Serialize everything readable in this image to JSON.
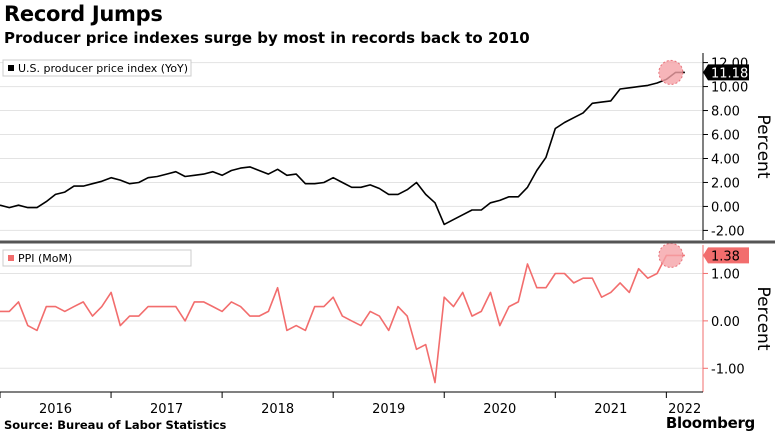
{
  "header": {
    "title": "Record Jumps",
    "subtitle": "Producer price indexes surge by most in records back to 2010"
  },
  "footer": {
    "source": "Source: Bureau of Labor Statistics",
    "brand": "Bloomberg"
  },
  "colors": {
    "yoy_line": "#000000",
    "mom_line": "#f26d6d",
    "highlight": "#f5a3a8",
    "divider": "#555555"
  },
  "chart_data": [
    {
      "type": "line",
      "legend": "U.S. producer price index (YoY)",
      "ylabel": "Percent",
      "ylim": [
        -2.8,
        12.8
      ],
      "yticks": [
        -2,
        0,
        2,
        4,
        6,
        8,
        10,
        12
      ],
      "ytick_labels": [
        "-2.00",
        "0.00",
        "2.00",
        "4.00",
        "6.00",
        "8.00",
        "10.00",
        "12.00"
      ],
      "callout": "11.18",
      "x": [
        "2016-01",
        "2016-02",
        "2016-03",
        "2016-04",
        "2016-05",
        "2016-06",
        "2016-07",
        "2016-08",
        "2016-09",
        "2016-10",
        "2016-11",
        "2016-12",
        "2017-01",
        "2017-02",
        "2017-03",
        "2017-04",
        "2017-05",
        "2017-06",
        "2017-07",
        "2017-08",
        "2017-09",
        "2017-10",
        "2017-11",
        "2017-12",
        "2018-01",
        "2018-02",
        "2018-03",
        "2018-04",
        "2018-05",
        "2018-06",
        "2018-07",
        "2018-08",
        "2018-09",
        "2018-10",
        "2018-11",
        "2018-12",
        "2019-01",
        "2019-02",
        "2019-03",
        "2019-04",
        "2019-05",
        "2019-06",
        "2019-07",
        "2019-08",
        "2019-09",
        "2019-10",
        "2019-11",
        "2019-12",
        "2020-01",
        "2020-02",
        "2020-03",
        "2020-04",
        "2020-05",
        "2020-06",
        "2020-07",
        "2020-08",
        "2020-09",
        "2020-10",
        "2020-11",
        "2020-12",
        "2021-01",
        "2021-02",
        "2021-03",
        "2021-04",
        "2021-05",
        "2021-06",
        "2021-07",
        "2021-08",
        "2021-09",
        "2021-10",
        "2021-11",
        "2021-12",
        "2022-01",
        "2022-02",
        "2022-03"
      ],
      "values": [
        0.1,
        -0.1,
        0.1,
        -0.1,
        -0.1,
        0.4,
        1.0,
        1.2,
        1.7,
        1.7,
        1.9,
        2.1,
        2.4,
        2.2,
        1.9,
        2.0,
        2.4,
        2.5,
        2.7,
        2.9,
        2.5,
        2.6,
        2.7,
        2.9,
        2.6,
        3.0,
        3.2,
        3.3,
        3.0,
        2.7,
        3.1,
        2.6,
        2.7,
        1.9,
        1.9,
        2.0,
        2.4,
        2.0,
        1.6,
        1.6,
        1.8,
        1.5,
        1.0,
        1.0,
        1.4,
        2.0,
        1.0,
        0.3,
        -1.5,
        -1.1,
        -0.7,
        -0.3,
        -0.3,
        0.3,
        0.5,
        0.8,
        0.8,
        1.6,
        3.0,
        4.1,
        6.5,
        7.0,
        7.4,
        7.8,
        8.6,
        8.7,
        8.8,
        9.8,
        9.9,
        10.0,
        10.1,
        10.3,
        10.6,
        11.18,
        11.18
      ],
      "highlight_last": true
    },
    {
      "type": "line",
      "legend": "PPI (MoM)",
      "ylabel": "Percent",
      "ylim": [
        -1.5,
        1.6
      ],
      "yticks": [
        -1,
        0,
        1
      ],
      "ytick_labels": [
        "-1.00",
        "0.00",
        "1.00"
      ],
      "callout": "1.38",
      "x": [
        "2016-01",
        "2016-02",
        "2016-03",
        "2016-04",
        "2016-05",
        "2016-06",
        "2016-07",
        "2016-08",
        "2016-09",
        "2016-10",
        "2016-11",
        "2016-12",
        "2017-01",
        "2017-02",
        "2017-03",
        "2017-04",
        "2017-05",
        "2017-06",
        "2017-07",
        "2017-08",
        "2017-09",
        "2017-10",
        "2017-11",
        "2017-12",
        "2018-01",
        "2018-02",
        "2018-03",
        "2018-04",
        "2018-05",
        "2018-06",
        "2018-07",
        "2018-08",
        "2018-09",
        "2018-10",
        "2018-11",
        "2018-12",
        "2019-01",
        "2019-02",
        "2019-03",
        "2019-04",
        "2019-05",
        "2019-06",
        "2019-07",
        "2019-08",
        "2019-09",
        "2019-10",
        "2019-11",
        "2019-12",
        "2020-01",
        "2020-02",
        "2020-03",
        "2020-04",
        "2020-05",
        "2020-06",
        "2020-07",
        "2020-08",
        "2020-09",
        "2020-10",
        "2020-11",
        "2020-12",
        "2021-01",
        "2021-02",
        "2021-03",
        "2021-04",
        "2021-05",
        "2021-06",
        "2021-07",
        "2021-08",
        "2021-09",
        "2021-10",
        "2021-11",
        "2021-12",
        "2022-01",
        "2022-02",
        "2022-03"
      ],
      "values": [
        0.2,
        0.2,
        0.4,
        -0.1,
        -0.2,
        0.3,
        0.3,
        0.2,
        0.3,
        0.4,
        0.1,
        0.3,
        0.6,
        -0.1,
        0.1,
        0.1,
        0.3,
        0.3,
        0.3,
        0.3,
        0.0,
        0.4,
        0.4,
        0.3,
        0.2,
        0.4,
        0.3,
        0.1,
        0.1,
        0.2,
        0.7,
        -0.2,
        -0.1,
        -0.2,
        0.3,
        0.3,
        0.5,
        0.1,
        0.0,
        -0.1,
        0.2,
        0.1,
        -0.2,
        0.3,
        0.1,
        -0.6,
        -0.5,
        -1.3,
        0.5,
        0.3,
        0.6,
        0.1,
        0.2,
        0.6,
        -0.1,
        0.3,
        0.4,
        1.2,
        0.7,
        0.7,
        1.0,
        1.0,
        0.8,
        0.9,
        0.9,
        0.5,
        0.6,
        0.8,
        0.6,
        1.1,
        0.9,
        1.0,
        1.38,
        1.38,
        1.38
      ],
      "highlight_last": true
    }
  ],
  "x_axis": {
    "year_labels": [
      "2016",
      "2017",
      "2018",
      "2019",
      "2020",
      "2021",
      "2022"
    ]
  }
}
